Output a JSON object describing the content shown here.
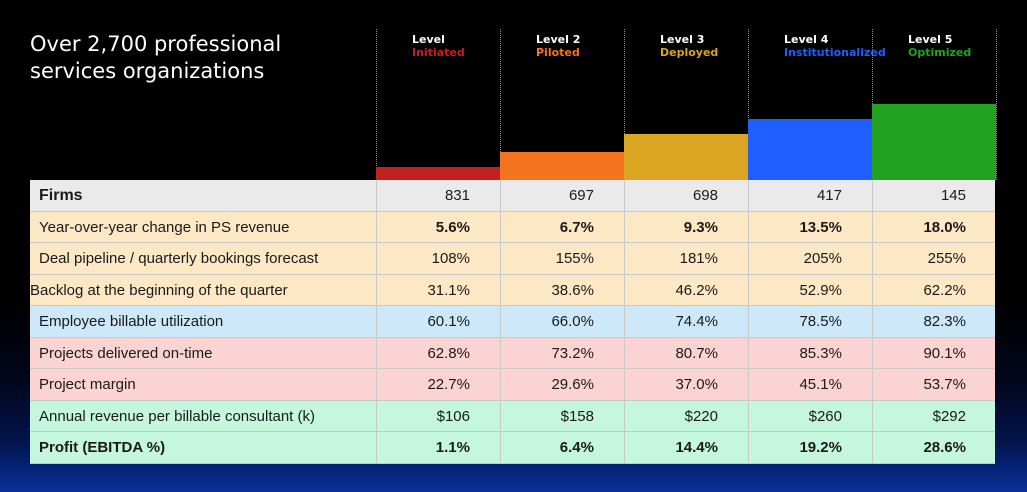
{
  "title": "Over 2,700 professional services organizations",
  "levels": [
    {
      "num": "Level",
      "name": "Initiated",
      "color": "#c22020"
    },
    {
      "num": "Level 2",
      "name": "Piloted",
      "color": "#f5731e"
    },
    {
      "num": "Level 3",
      "name": "Deployed",
      "color": "#daa520"
    },
    {
      "num": "Level 4",
      "name": "Institutionalized",
      "color": "#1f5fff"
    },
    {
      "num": "Level 5",
      "name": "Optimized",
      "color": "#21a321"
    }
  ],
  "chart_data": {
    "type": "bar",
    "categories": [
      "Initiated",
      "Piloted",
      "Deployed",
      "Institutionalized",
      "Optimized"
    ],
    "values": [
      1,
      2,
      3,
      4,
      5
    ],
    "title": "Over 2,700 professional services organizations",
    "grid": false,
    "legend": "none"
  },
  "rows": [
    {
      "label": "Firms",
      "values": [
        "831",
        "697",
        "698",
        "417",
        "145"
      ],
      "bg": "#eaeaea",
      "bold_label": true,
      "bold_values": false,
      "indent": true
    },
    {
      "label": "Year-over-year change in PS revenue",
      "values": [
        "5.6%",
        "6.7%",
        "9.3%",
        "13.5%",
        "18.0%"
      ],
      "bg": "#fde8c6",
      "bold_label": false,
      "bold_values": true,
      "indent": true
    },
    {
      "label": "Deal pipeline / quarterly bookings forecast",
      "values": [
        "108%",
        "155%",
        "181%",
        "205%",
        "255%"
      ],
      "bg": "#fde8c6",
      "bold_label": false,
      "bold_values": false,
      "indent": true
    },
    {
      "label": "Backlog at the beginning of the quarter",
      "values": [
        "31.1%",
        "38.6%",
        "46.2%",
        "52.9%",
        "62.2%"
      ],
      "bg": "#fde8c6",
      "bold_label": false,
      "bold_values": false,
      "indent": false
    },
    {
      "label": "Employee billable utilization",
      "values": [
        "60.1%",
        "66.0%",
        "74.4%",
        "78.5%",
        "82.3%"
      ],
      "bg": "#cde8f8",
      "bold_label": false,
      "bold_values": false,
      "indent": true
    },
    {
      "label": "Projects delivered on-time",
      "values": [
        "62.8%",
        "73.2%",
        "80.7%",
        "85.3%",
        "90.1%"
      ],
      "bg": "#fbd3d3",
      "bold_label": false,
      "bold_values": false,
      "indent": true
    },
    {
      "label": "Project margin",
      "values": [
        "22.7%",
        "29.6%",
        "37.0%",
        "45.1%",
        "53.7%"
      ],
      "bg": "#fbd3d3",
      "bold_label": false,
      "bold_values": false,
      "indent": true
    },
    {
      "label": "Annual revenue per billable consultant (k)",
      "values": [
        "$106",
        "$158",
        "$220",
        "$260",
        "$292"
      ],
      "bg": "#c5f7de",
      "bold_label": false,
      "bold_values": false,
      "indent": true
    },
    {
      "label": "Profit (EBITDA %)",
      "values": [
        "1.1%",
        "6.4%",
        "14.4%",
        "19.2%",
        "28.6%"
      ],
      "bg": "#c5f7de",
      "bold_label": true,
      "bold_values": true,
      "indent": true
    }
  ]
}
